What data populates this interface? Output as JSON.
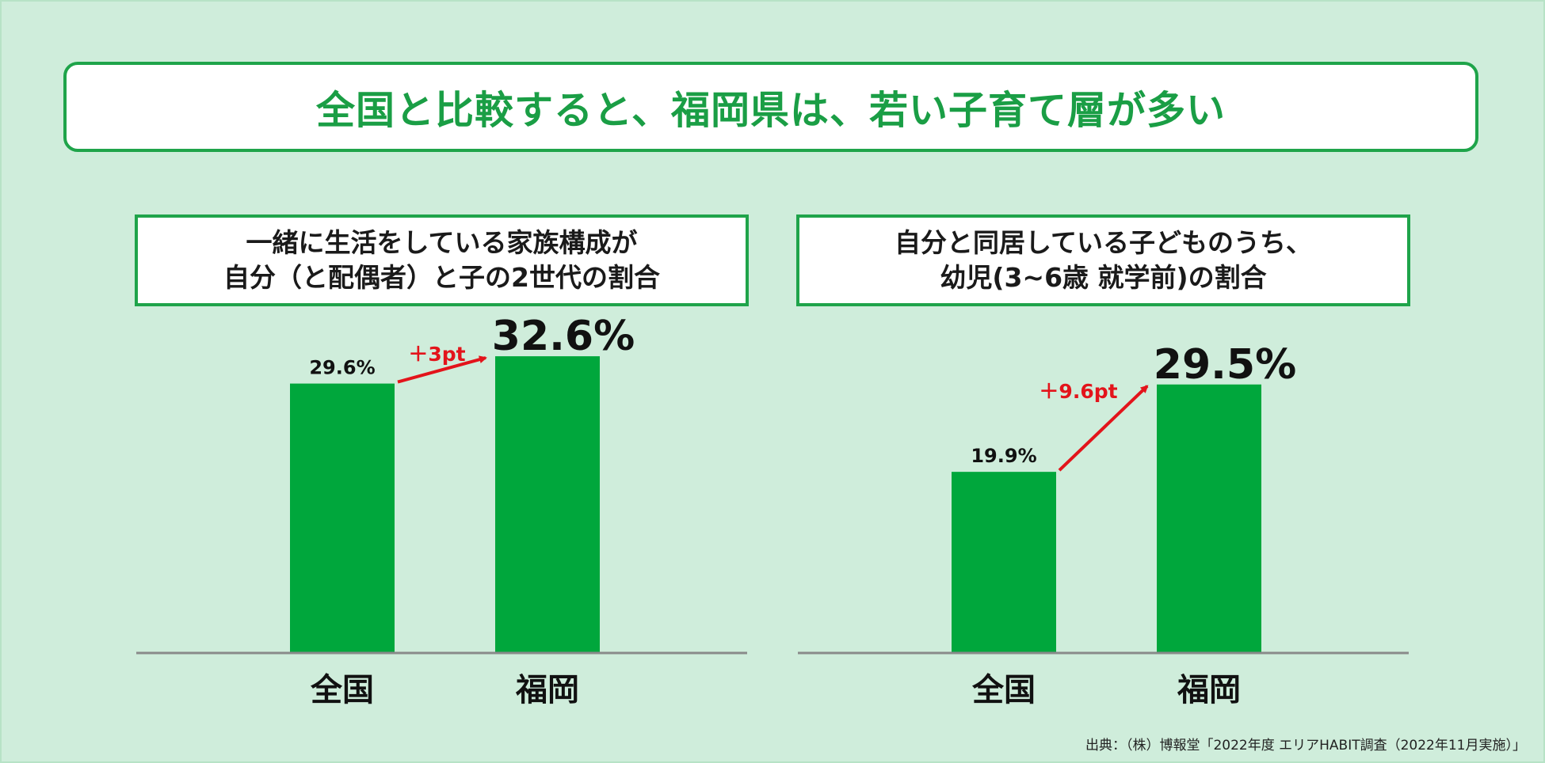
{
  "title": "全国と比較すると、福岡県は、若い子育て層が多い",
  "panels": [
    {
      "heading": [
        "一緒に生活をしている家族構成が",
        "自分（と配偶者）と子の2世代の割合"
      ]
    },
    {
      "heading": [
        "自分と同居している子どものうち、",
        "幼児(3~6歳 就学前)の割合"
      ]
    }
  ],
  "chart_data": [
    {
      "type": "bar",
      "categories": [
        "全国",
        "福岡"
      ],
      "values": [
        29.6,
        32.6
      ],
      "value_labels": [
        "29.6%",
        "32.6%"
      ],
      "annotation": "＋3pt",
      "ylim": [
        0,
        35
      ],
      "grid": false
    },
    {
      "type": "bar",
      "categories": [
        "全国",
        "福岡"
      ],
      "values": [
        19.9,
        29.5
      ],
      "value_labels": [
        "19.9%",
        "29.5%"
      ],
      "annotation": "＋9.6pt",
      "ylim": [
        0,
        35
      ],
      "grid": false
    }
  ],
  "colors": {
    "bar": "#00a73c",
    "title": "#1a9e45",
    "border": "#1fa44a",
    "arrow": "#e3141b",
    "background": "#cfeddb"
  },
  "source": "出典：（株）博報堂「2022年度 エリアHABIT調査（2022年11月実施）」"
}
